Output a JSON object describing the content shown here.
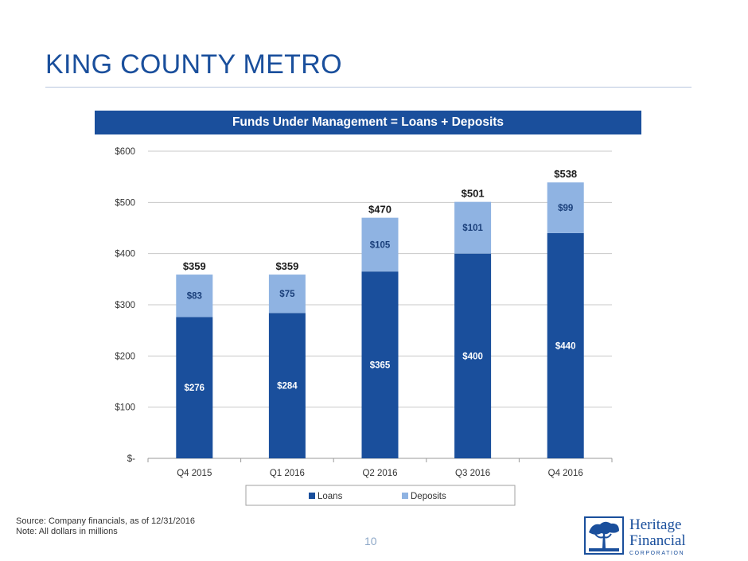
{
  "page": {
    "title": "KING COUNTY METRO",
    "banner": "Funds Under Management = Loans + Deposits",
    "source_line": "Source: Company financials, as of 12/31/2016",
    "note_line": "Note:  All dollars in millions",
    "page_number": "10"
  },
  "logo": {
    "line1": "Heritage",
    "line2": "Financial",
    "line3": "CORPORATION"
  },
  "colors": {
    "loans": "#1a4f9c",
    "deposits": "#8fb3e2",
    "title": "#1a4f9c"
  },
  "chart_data": {
    "type": "bar",
    "stacked": true,
    "categories": [
      "Q4 2015",
      "Q1 2016",
      "Q2 2016",
      "Q3 2016",
      "Q4 2016"
    ],
    "series": [
      {
        "name": "Loans",
        "values": [
          276,
          284,
          365,
          400,
          440
        ],
        "labels": [
          "$276",
          "$284",
          "$365",
          "$400",
          "$440"
        ]
      },
      {
        "name": "Deposits",
        "values": [
          83,
          75,
          105,
          101,
          99
        ],
        "labels": [
          "$83",
          "$75",
          "$105",
          "$101",
          "$99"
        ]
      }
    ],
    "totals": [
      "$359",
      "$359",
      "$470",
      "$501",
      "$538"
    ],
    "ylim": [
      0,
      600
    ],
    "yticks": [
      0,
      100,
      200,
      300,
      400,
      500,
      600
    ],
    "ytick_labels": [
      "$-",
      "$100",
      "$200",
      "$300",
      "$400",
      "$500",
      "$600"
    ],
    "grid": true,
    "legend": "bottom"
  }
}
